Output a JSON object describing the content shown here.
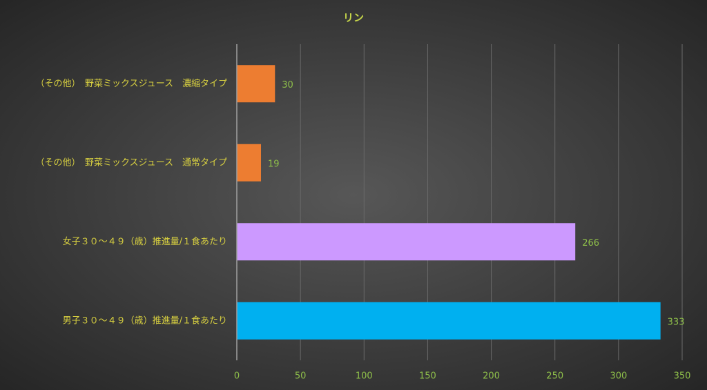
{
  "chart_data": {
    "type": "bar",
    "orientation": "horizontal",
    "title": "リン",
    "categories": [
      "（その他）　野菜ミックスジュース　濃縮タイプ",
      "（その他）　野菜ミックスジュース　通常タイプ",
      "女子３０～４９（歳）推進量/１食あたり",
      "男子３０～４９（歳）推進量/１食あたり"
    ],
    "values": [
      30,
      19,
      266,
      333
    ],
    "colors": [
      "#ed7d31",
      "#ed7d31",
      "#cc99ff",
      "#00b0f0"
    ],
    "xlim": [
      0,
      350
    ],
    "xticks": [
      0,
      50,
      100,
      150,
      200,
      250,
      300,
      350
    ],
    "grid": true
  }
}
